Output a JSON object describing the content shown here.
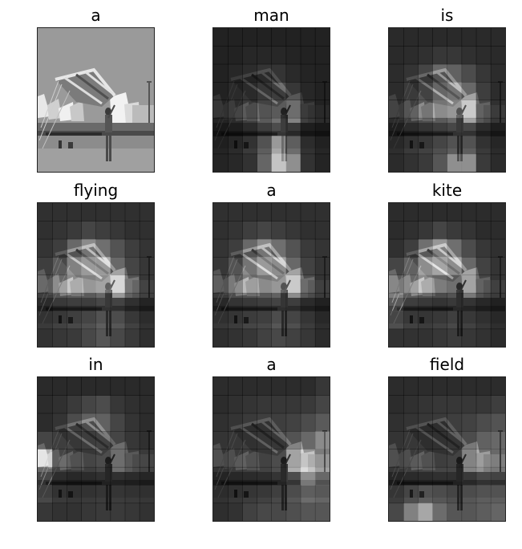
{
  "panels": [
    {
      "word": "a",
      "attention": null
    },
    {
      "word": "man",
      "attention": [
        [
          0.05,
          0.05,
          0.05,
          0.05,
          0.05,
          0.05,
          0.05,
          0.05
        ],
        [
          0.05,
          0.05,
          0.08,
          0.08,
          0.08,
          0.06,
          0.05,
          0.05
        ],
        [
          0.05,
          0.08,
          0.12,
          0.18,
          0.18,
          0.1,
          0.06,
          0.05
        ],
        [
          0.05,
          0.1,
          0.18,
          0.3,
          0.35,
          0.2,
          0.08,
          0.05
        ],
        [
          0.06,
          0.12,
          0.22,
          0.4,
          0.45,
          0.3,
          0.1,
          0.05
        ],
        [
          0.06,
          0.12,
          0.25,
          0.45,
          0.6,
          0.4,
          0.12,
          0.06
        ],
        [
          0.05,
          0.1,
          0.2,
          0.45,
          0.8,
          0.55,
          0.15,
          0.06
        ],
        [
          0.05,
          0.08,
          0.15,
          0.5,
          0.95,
          0.7,
          0.15,
          0.05
        ]
      ]
    },
    {
      "word": "is",
      "attention": [
        [
          0.1,
          0.1,
          0.1,
          0.1,
          0.1,
          0.1,
          0.1,
          0.1
        ],
        [
          0.1,
          0.12,
          0.15,
          0.2,
          0.2,
          0.15,
          0.12,
          0.1
        ],
        [
          0.12,
          0.18,
          0.3,
          0.55,
          0.5,
          0.35,
          0.2,
          0.12
        ],
        [
          0.12,
          0.22,
          0.4,
          0.65,
          0.7,
          0.55,
          0.25,
          0.12
        ],
        [
          0.12,
          0.25,
          0.45,
          0.7,
          0.75,
          0.7,
          0.3,
          0.15
        ],
        [
          0.12,
          0.25,
          0.35,
          0.45,
          0.55,
          0.55,
          0.25,
          0.12
        ],
        [
          0.12,
          0.2,
          0.25,
          0.35,
          0.45,
          0.45,
          0.2,
          0.1
        ],
        [
          0.1,
          0.15,
          0.2,
          0.4,
          0.7,
          0.7,
          0.2,
          0.1
        ]
      ]
    },
    {
      "word": "flying",
      "attention": [
        [
          0.15,
          0.15,
          0.15,
          0.15,
          0.15,
          0.15,
          0.15,
          0.15
        ],
        [
          0.15,
          0.18,
          0.22,
          0.3,
          0.25,
          0.2,
          0.15,
          0.15
        ],
        [
          0.18,
          0.25,
          0.55,
          0.7,
          0.6,
          0.4,
          0.25,
          0.18
        ],
        [
          0.25,
          0.45,
          0.75,
          0.85,
          0.85,
          0.55,
          0.3,
          0.2
        ],
        [
          0.3,
          0.55,
          0.7,
          0.75,
          0.8,
          0.75,
          0.4,
          0.2
        ],
        [
          0.25,
          0.4,
          0.45,
          0.45,
          0.55,
          0.5,
          0.3,
          0.18
        ],
        [
          0.2,
          0.25,
          0.3,
          0.35,
          0.45,
          0.4,
          0.25,
          0.15
        ],
        [
          0.15,
          0.18,
          0.2,
          0.3,
          0.4,
          0.3,
          0.2,
          0.12
        ]
      ]
    },
    {
      "word": "a",
      "attention": [
        [
          0.15,
          0.15,
          0.15,
          0.15,
          0.15,
          0.15,
          0.15,
          0.15
        ],
        [
          0.15,
          0.18,
          0.25,
          0.3,
          0.25,
          0.2,
          0.15,
          0.15
        ],
        [
          0.18,
          0.25,
          0.55,
          0.7,
          0.6,
          0.4,
          0.22,
          0.18
        ],
        [
          0.2,
          0.4,
          0.7,
          0.85,
          0.8,
          0.55,
          0.28,
          0.18
        ],
        [
          0.25,
          0.45,
          0.65,
          0.7,
          0.75,
          0.7,
          0.35,
          0.18
        ],
        [
          0.22,
          0.35,
          0.4,
          0.45,
          0.5,
          0.45,
          0.25,
          0.15
        ],
        [
          0.18,
          0.22,
          0.28,
          0.3,
          0.4,
          0.35,
          0.22,
          0.12
        ],
        [
          0.12,
          0.15,
          0.18,
          0.25,
          0.3,
          0.25,
          0.18,
          0.1
        ]
      ]
    },
    {
      "word": "kite",
      "attention": [
        [
          0.12,
          0.12,
          0.12,
          0.12,
          0.12,
          0.12,
          0.12,
          0.12
        ],
        [
          0.12,
          0.15,
          0.2,
          0.3,
          0.22,
          0.18,
          0.12,
          0.12
        ],
        [
          0.15,
          0.25,
          0.6,
          0.75,
          0.6,
          0.35,
          0.2,
          0.15
        ],
        [
          0.3,
          0.5,
          0.8,
          0.9,
          0.8,
          0.55,
          0.28,
          0.18
        ],
        [
          0.45,
          0.55,
          0.7,
          0.65,
          0.6,
          0.55,
          0.3,
          0.18
        ],
        [
          0.65,
          0.45,
          0.4,
          0.35,
          0.4,
          0.35,
          0.22,
          0.15
        ],
        [
          0.35,
          0.25,
          0.22,
          0.25,
          0.3,
          0.25,
          0.18,
          0.12
        ],
        [
          0.15,
          0.15,
          0.15,
          0.18,
          0.22,
          0.18,
          0.15,
          0.1
        ]
      ]
    },
    {
      "word": "in",
      "attention": [
        [
          0.1,
          0.1,
          0.1,
          0.1,
          0.1,
          0.1,
          0.1,
          0.1
        ],
        [
          0.12,
          0.15,
          0.22,
          0.3,
          0.35,
          0.2,
          0.15,
          0.12
        ],
        [
          0.12,
          0.18,
          0.35,
          0.5,
          0.5,
          0.3,
          0.18,
          0.12
        ],
        [
          0.3,
          0.25,
          0.3,
          0.35,
          0.4,
          0.3,
          0.2,
          0.15
        ],
        [
          0.85,
          0.3,
          0.25,
          0.3,
          0.35,
          0.3,
          0.25,
          0.22
        ],
        [
          0.55,
          0.28,
          0.22,
          0.25,
          0.3,
          0.3,
          0.25,
          0.2
        ],
        [
          0.3,
          0.2,
          0.18,
          0.2,
          0.22,
          0.22,
          0.2,
          0.18
        ],
        [
          0.18,
          0.15,
          0.15,
          0.18,
          0.2,
          0.2,
          0.18,
          0.15
        ]
      ]
    },
    {
      "word": "a",
      "attention": [
        [
          0.12,
          0.12,
          0.12,
          0.12,
          0.12,
          0.12,
          0.12,
          0.2
        ],
        [
          0.12,
          0.15,
          0.18,
          0.2,
          0.2,
          0.2,
          0.22,
          0.3
        ],
        [
          0.15,
          0.18,
          0.22,
          0.25,
          0.25,
          0.28,
          0.35,
          0.45
        ],
        [
          0.18,
          0.2,
          0.25,
          0.28,
          0.3,
          0.4,
          0.55,
          0.7
        ],
        [
          0.18,
          0.22,
          0.25,
          0.28,
          0.35,
          0.55,
          0.75,
          0.65
        ],
        [
          0.18,
          0.22,
          0.25,
          0.28,
          0.35,
          0.6,
          0.85,
          0.7
        ],
        [
          0.15,
          0.18,
          0.22,
          0.25,
          0.3,
          0.4,
          0.55,
          0.5
        ],
        [
          0.12,
          0.15,
          0.25,
          0.3,
          0.3,
          0.35,
          0.4,
          0.4
        ]
      ]
    },
    {
      "word": "field",
      "attention": [
        [
          0.12,
          0.12,
          0.12,
          0.12,
          0.12,
          0.12,
          0.12,
          0.12
        ],
        [
          0.12,
          0.15,
          0.18,
          0.2,
          0.2,
          0.2,
          0.2,
          0.25
        ],
        [
          0.15,
          0.18,
          0.2,
          0.22,
          0.25,
          0.28,
          0.35,
          0.4
        ],
        [
          0.18,
          0.2,
          0.22,
          0.25,
          0.28,
          0.35,
          0.5,
          0.55
        ],
        [
          0.18,
          0.22,
          0.25,
          0.25,
          0.28,
          0.4,
          0.6,
          0.55
        ],
        [
          0.2,
          0.25,
          0.28,
          0.3,
          0.3,
          0.4,
          0.55,
          0.5
        ],
        [
          0.22,
          0.35,
          0.45,
          0.4,
          0.35,
          0.4,
          0.45,
          0.45
        ],
        [
          0.3,
          0.65,
          0.8,
          0.55,
          0.4,
          0.4,
          0.45,
          0.5
        ]
      ]
    }
  ]
}
